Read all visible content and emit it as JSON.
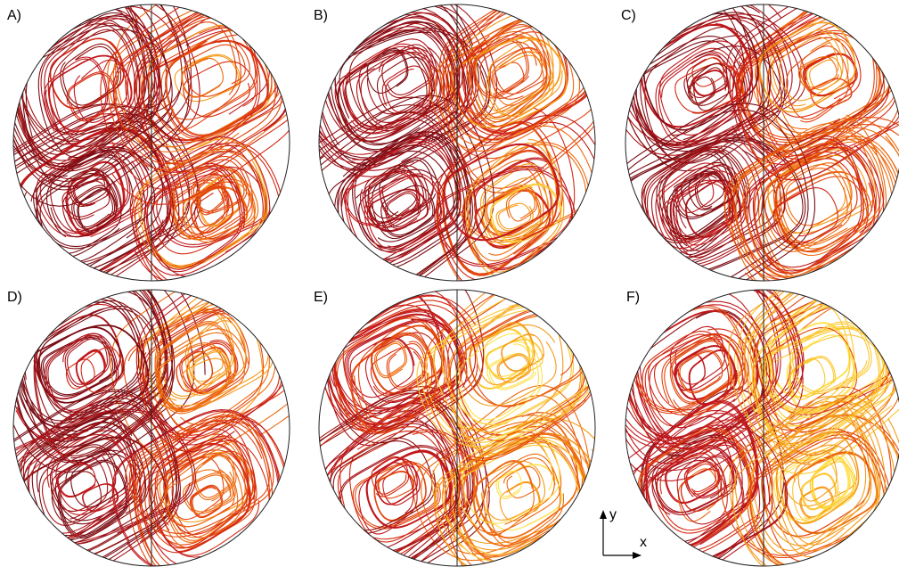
{
  "panels": [
    {
      "label": "A)"
    },
    {
      "label": "B)"
    },
    {
      "label": "C)"
    },
    {
      "label": "D)"
    },
    {
      "label": "E)"
    },
    {
      "label": "F)"
    }
  ],
  "axes": {
    "y": "y",
    "x": "x"
  }
}
